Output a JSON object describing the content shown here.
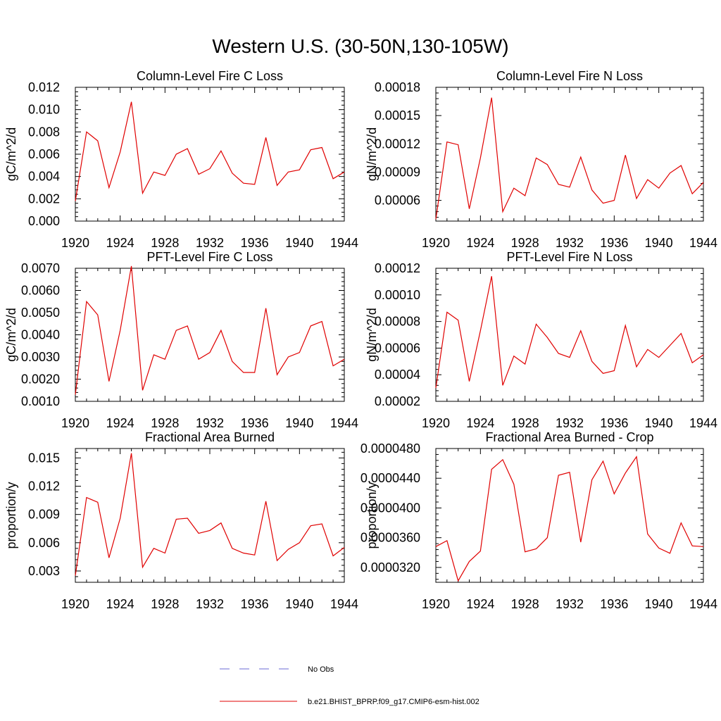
{
  "figure": {
    "title": "Western U.S. (30-50N,130-105W)"
  },
  "legend": {
    "entries": [
      {
        "label": "No Obs",
        "color": "#6b6bd6",
        "dash": true
      },
      {
        "label": "b.e21.BHIST_BPRP.f09_g17.CMIP6-esm-hist.002",
        "color": "#e00000",
        "dash": false
      }
    ]
  },
  "chart_data": [
    {
      "type": "line",
      "title": "Column-Level Fire C Loss",
      "ylabel": "gC/m^2/d",
      "xlim": [
        1920,
        1944
      ],
      "ylim": [
        0,
        0.012
      ],
      "xticks": [
        1920,
        1924,
        1928,
        1932,
        1936,
        1940,
        1944
      ],
      "yticks": [
        "0.000",
        "0.002",
        "0.004",
        "0.006",
        "0.008",
        "0.010",
        "0.012"
      ],
      "ytick_values": [
        0,
        0.002,
        0.004,
        0.006,
        0.008,
        0.01,
        0.012
      ],
      "x": [
        1920,
        1921,
        1922,
        1923,
        1924,
        1925,
        1926,
        1927,
        1928,
        1929,
        1930,
        1931,
        1932,
        1933,
        1934,
        1935,
        1936,
        1937,
        1938,
        1939,
        1940,
        1941,
        1942,
        1943,
        1944
      ],
      "series": [
        {
          "color": "#e00000",
          "values": [
            0.0018,
            0.008,
            0.0072,
            0.003,
            0.0062,
            0.0107,
            0.0025,
            0.0044,
            0.0041,
            0.006,
            0.0065,
            0.0042,
            0.0047,
            0.0063,
            0.0043,
            0.0034,
            0.0033,
            0.0075,
            0.0032,
            0.0044,
            0.0046,
            0.0064,
            0.0066,
            0.0038,
            0.0044
          ]
        }
      ]
    },
    {
      "type": "line",
      "title": "Column-Level Fire N Loss",
      "ylabel": "gN/m^2/d",
      "xlim": [
        1920,
        1944
      ],
      "ylim": [
        3.8e-05,
        0.00018
      ],
      "xticks": [
        1920,
        1924,
        1928,
        1932,
        1936,
        1940,
        1944
      ],
      "yticks": [
        "0.00006",
        "0.00009",
        "0.00012",
        "0.00015",
        "0.00018"
      ],
      "ytick_values": [
        6e-05,
        9e-05,
        0.00012,
        0.00015,
        0.00018
      ],
      "x": [
        1920,
        1921,
        1922,
        1923,
        1924,
        1925,
        1926,
        1927,
        1928,
        1929,
        1930,
        1931,
        1932,
        1933,
        1934,
        1935,
        1936,
        1937,
        1938,
        1939,
        1940,
        1941,
        1942,
        1943,
        1944
      ],
      "series": [
        {
          "color": "#e00000",
          "values": [
            4e-05,
            0.000122,
            0.000119,
            5.1e-05,
            0.000105,
            0.000169,
            4.8e-05,
            7.3e-05,
            6.5e-05,
            0.000105,
            9.8e-05,
            7.7e-05,
            7.4e-05,
            0.000106,
            7.1e-05,
            5.7e-05,
            6e-05,
            0.000108,
            6.2e-05,
            8.2e-05,
            7.3e-05,
            8.9e-05,
            9.7e-05,
            6.7e-05,
            7.9e-05
          ]
        }
      ]
    },
    {
      "type": "line",
      "title": "PFT-Level Fire C Loss",
      "ylabel": "gC/m^2/d",
      "xlim": [
        1920,
        1944
      ],
      "ylim": [
        0.001,
        0.007
      ],
      "xticks": [
        1920,
        1924,
        1928,
        1932,
        1936,
        1940,
        1944
      ],
      "yticks": [
        "0.0010",
        "0.0020",
        "0.0030",
        "0.0040",
        "0.0050",
        "0.0060",
        "0.0070"
      ],
      "ytick_values": [
        0.001,
        0.002,
        0.003,
        0.004,
        0.005,
        0.006,
        0.007
      ],
      "x": [
        1920,
        1921,
        1922,
        1923,
        1924,
        1925,
        1926,
        1927,
        1928,
        1929,
        1930,
        1931,
        1932,
        1933,
        1934,
        1935,
        1936,
        1937,
        1938,
        1939,
        1940,
        1941,
        1942,
        1943,
        1944
      ],
      "series": [
        {
          "color": "#e00000",
          "values": [
            0.0013,
            0.0055,
            0.0049,
            0.0019,
            0.0042,
            0.0071,
            0.0015,
            0.0031,
            0.0029,
            0.0042,
            0.0044,
            0.0029,
            0.0032,
            0.0042,
            0.0028,
            0.0023,
            0.0023,
            0.0052,
            0.0022,
            0.003,
            0.0032,
            0.0044,
            0.0046,
            0.0026,
            0.0029
          ]
        }
      ]
    },
    {
      "type": "line",
      "title": "PFT-Level Fire N Loss",
      "ylabel": "gN/m^2/d",
      "xlim": [
        1920,
        1944
      ],
      "ylim": [
        2e-05,
        0.00012
      ],
      "xticks": [
        1920,
        1924,
        1928,
        1932,
        1936,
        1940,
        1944
      ],
      "yticks": [
        "0.00002",
        "0.00004",
        "0.00006",
        "0.00008",
        "0.00010",
        "0.00012"
      ],
      "ytick_values": [
        2e-05,
        4e-05,
        6e-05,
        8e-05,
        0.0001,
        0.00012
      ],
      "x": [
        1920,
        1921,
        1922,
        1923,
        1924,
        1925,
        1926,
        1927,
        1928,
        1929,
        1930,
        1931,
        1932,
        1933,
        1934,
        1935,
        1936,
        1937,
        1938,
        1939,
        1940,
        1941,
        1942,
        1943,
        1944
      ],
      "series": [
        {
          "color": "#e00000",
          "values": [
            3e-05,
            8.7e-05,
            8.1e-05,
            3.5e-05,
            7.3e-05,
            0.000114,
            3.2e-05,
            5.4e-05,
            4.8e-05,
            7.8e-05,
            6.8e-05,
            5.6e-05,
            5.3e-05,
            7.3e-05,
            5e-05,
            4.1e-05,
            4.3e-05,
            7.7e-05,
            4.6e-05,
            5.9e-05,
            5.3e-05,
            6.2e-05,
            7.1e-05,
            4.9e-05,
            5.5e-05
          ]
        }
      ]
    },
    {
      "type": "line",
      "title": "Fractional Area Burned",
      "ylabel": "proportion/y",
      "xlim": [
        1920,
        1944
      ],
      "ylim": [
        0.0018,
        0.016
      ],
      "xticks": [
        1920,
        1924,
        1928,
        1932,
        1936,
        1940,
        1944
      ],
      "yticks": [
        "0.003",
        "0.006",
        "0.009",
        "0.012",
        "0.015"
      ],
      "ytick_values": [
        0.003,
        0.006,
        0.009,
        0.012,
        0.015
      ],
      "x": [
        1920,
        1921,
        1922,
        1923,
        1924,
        1925,
        1926,
        1927,
        1928,
        1929,
        1930,
        1931,
        1932,
        1933,
        1934,
        1935,
        1936,
        1937,
        1938,
        1939,
        1940,
        1941,
        1942,
        1943,
        1944
      ],
      "series": [
        {
          "color": "#e00000",
          "values": [
            0.0025,
            0.0108,
            0.0103,
            0.0044,
            0.0086,
            0.0155,
            0.0034,
            0.0054,
            0.0049,
            0.0085,
            0.0086,
            0.007,
            0.0073,
            0.0081,
            0.0054,
            0.0049,
            0.0047,
            0.0104,
            0.0041,
            0.0053,
            0.006,
            0.0078,
            0.008,
            0.0046,
            0.0055
          ]
        }
      ]
    },
    {
      "type": "line",
      "title": "Fractional Area Burned - Crop",
      "ylabel": "proportion/y",
      "xlim": [
        1920,
        1944
      ],
      "ylim": [
        3e-05,
        4.8e-05
      ],
      "xticks": [
        1920,
        1924,
        1928,
        1932,
        1936,
        1940,
        1944
      ],
      "yticks": [
        "0.0000320",
        "0.0000360",
        "0.0000400",
        "0.0000440",
        "0.0000480"
      ],
      "ytick_values": [
        3.2e-05,
        3.6e-05,
        4e-05,
        4.4e-05,
        4.8e-05
      ],
      "x": [
        1920,
        1921,
        1922,
        1923,
        1924,
        1925,
        1926,
        1927,
        1928,
        1929,
        1930,
        1931,
        1932,
        1933,
        1934,
        1935,
        1936,
        1937,
        1938,
        1939,
        1940,
        1941,
        1942,
        1943,
        1944
      ],
      "series": [
        {
          "color": "#e00000",
          "values": [
            3.48e-05,
            3.56e-05,
            3.02e-05,
            3.28e-05,
            3.42e-05,
            4.52e-05,
            4.65e-05,
            4.32e-05,
            3.41e-05,
            3.45e-05,
            3.6e-05,
            4.44e-05,
            4.48e-05,
            3.54e-05,
            4.38e-05,
            4.63e-05,
            4.19e-05,
            4.47e-05,
            4.69e-05,
            3.65e-05,
            3.46e-05,
            3.39e-05,
            3.8e-05,
            3.49e-05,
            3.48e-05
          ]
        }
      ]
    }
  ]
}
